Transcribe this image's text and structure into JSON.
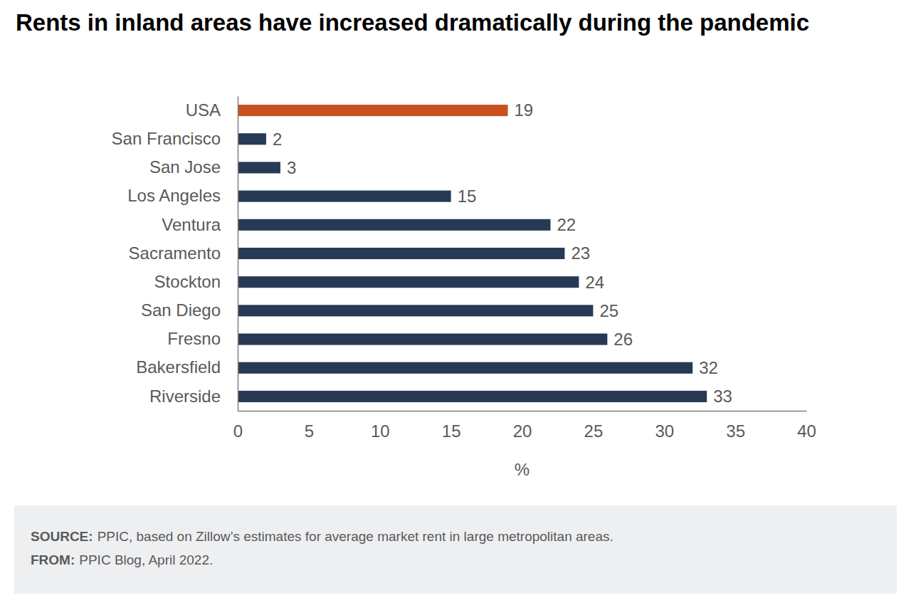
{
  "chart_data": {
    "type": "bar",
    "orientation": "horizontal",
    "title": "Rents in inland areas have increased dramatically during the pandemic",
    "xlabel": "%",
    "categories": [
      "USA",
      "San Francisco",
      "San Jose",
      "Los Angeles",
      "Ventura",
      "Sacramento",
      "Stockton",
      "San Diego",
      "Fresno",
      "Bakersfield",
      "Riverside"
    ],
    "values": [
      19,
      2,
      3,
      15,
      22,
      23,
      24,
      25,
      26,
      32,
      33
    ],
    "colors": [
      "#c8511f",
      "#263a55",
      "#263a55",
      "#263a55",
      "#263a55",
      "#263a55",
      "#263a55",
      "#263a55",
      "#263a55",
      "#263a55",
      "#263a55"
    ],
    "xlim": [
      0,
      40
    ],
    "xticks": [
      0,
      5,
      10,
      15,
      20,
      25,
      30,
      35,
      40
    ],
    "grid": false,
    "data_labels": true,
    "notes": [
      {
        "label": "SOURCE:",
        "text": "PPIC, based on Zillow’s estimates for average market rent in large metropolitan areas."
      },
      {
        "label": "FROM:",
        "text": "PPIC Blog, April 2022."
      }
    ]
  }
}
